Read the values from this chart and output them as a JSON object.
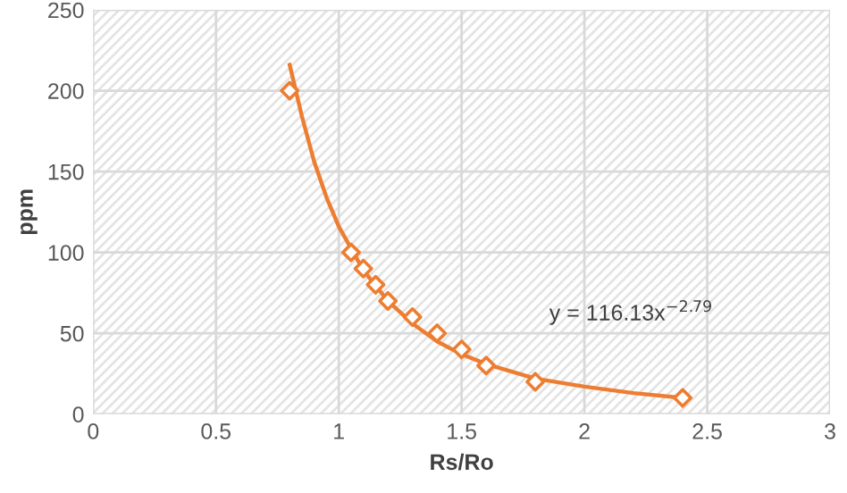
{
  "chart_data": {
    "type": "scatter",
    "xlabel": "Rs/Ro",
    "ylabel": "ppm",
    "xlim": [
      0,
      3
    ],
    "ylim": [
      0,
      250
    ],
    "xticks": [
      0,
      0.5,
      1,
      1.5,
      2,
      2.5,
      3
    ],
    "yticks": [
      0,
      50,
      100,
      150,
      200,
      250
    ],
    "grid": true,
    "marker": "diamond",
    "series": [
      {
        "color": "#ed7d31",
        "x": [
          0.8,
          1.05,
          1.1,
          1.15,
          1.2,
          1.3,
          1.4,
          1.5,
          1.6,
          1.8,
          2.4
        ],
        "values": [
          200,
          100,
          90,
          80,
          70,
          60,
          50,
          40,
          30,
          20,
          10
        ]
      },
      {
        "type": "line",
        "color": "#ed7d31",
        "marker": "none",
        "x": [
          0.8,
          0.85,
          0.9,
          0.95,
          1.0,
          1.1,
          1.2,
          1.3,
          1.4,
          1.5,
          1.6,
          1.8,
          2.0,
          2.2,
          2.4
        ],
        "values": [
          216,
          184,
          156,
          134,
          116,
          89,
          70,
          56,
          45,
          37,
          31,
          22,
          17,
          13,
          10
        ]
      }
    ],
    "annotations": [
      "y = 116.13x$^{−2.79}$"
    ]
  }
}
